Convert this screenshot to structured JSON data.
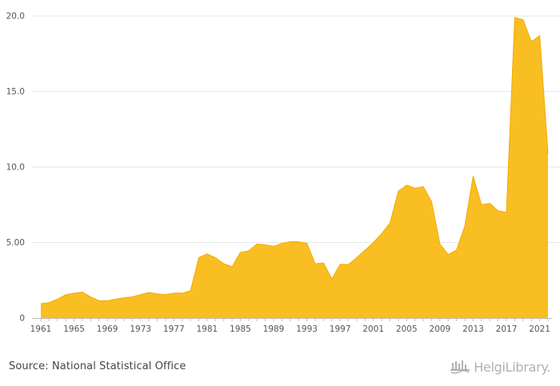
{
  "chart_data": {
    "type": "area",
    "x": [
      1961,
      1962,
      1963,
      1964,
      1965,
      1966,
      1967,
      1968,
      1969,
      1970,
      1971,
      1972,
      1973,
      1974,
      1975,
      1976,
      1977,
      1978,
      1979,
      1980,
      1981,
      1982,
      1983,
      1984,
      1985,
      1986,
      1987,
      1988,
      1989,
      1990,
      1991,
      1992,
      1993,
      1994,
      1995,
      1996,
      1997,
      1998,
      1999,
      2000,
      2001,
      2002,
      2003,
      2004,
      2005,
      2006,
      2007,
      2008,
      2009,
      2010,
      2011,
      2012,
      2013,
      2014,
      2015,
      2016,
      2017,
      2018,
      2019,
      2020,
      2021,
      2022
    ],
    "values": [
      0.95,
      1.02,
      1.25,
      1.55,
      1.65,
      1.72,
      1.4,
      1.15,
      1.15,
      1.25,
      1.35,
      1.4,
      1.55,
      1.7,
      1.6,
      1.55,
      1.65,
      1.65,
      1.8,
      4.0,
      4.25,
      4.0,
      3.6,
      3.4,
      4.35,
      4.45,
      4.9,
      4.85,
      4.75,
      4.95,
      5.05,
      5.05,
      4.95,
      3.6,
      3.65,
      2.6,
      3.55,
      3.55,
      4.0,
      4.5,
      5.0,
      5.6,
      6.3,
      8.4,
      8.8,
      8.6,
      8.7,
      7.7,
      4.9,
      4.2,
      4.5,
      6.1,
      9.4,
      7.5,
      7.6,
      7.1,
      7.0,
      19.9,
      19.75,
      18.3,
      18.7,
      10.9
    ],
    "x_tick_labels": [
      "1961",
      "1965",
      "1969",
      "1973",
      "1977",
      "1981",
      "1985",
      "1989",
      "1993",
      "1997",
      "2001",
      "2005",
      "2009",
      "2013",
      "2017",
      "2021"
    ],
    "y_tick_labels": [
      "0",
      "5.00",
      "10.0",
      "15.0",
      "20.0"
    ],
    "y_ticks": [
      0,
      5,
      10,
      15,
      20
    ],
    "ylim": [
      0,
      20
    ],
    "xlim": [
      1961,
      2022
    ],
    "grid": "horizontal",
    "color": "#f9b90f",
    "line_color": "#f2ab00",
    "title": "",
    "xlabel": "",
    "ylabel": ""
  },
  "footer": {
    "source": "Source: National Statistical Office",
    "logo_text": "HelgiLibrary."
  }
}
